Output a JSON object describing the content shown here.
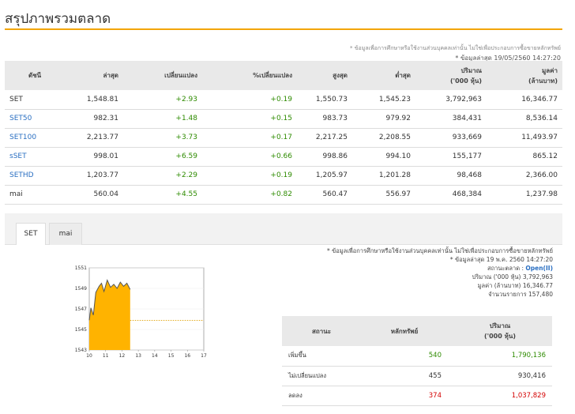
{
  "page": {
    "title": "สรุปภาพรวมตลาด",
    "disclaimer": "* ข้อมูลเพื่อการศึกษาหรือใช้งานส่วนบุคคลเท่านั้น ไม่ใช่เพื่อประกอบการซื้อขายหลักทรัพย์",
    "asof": "* ข้อมูลล่าสุด 19/05/2560 14:27:20"
  },
  "summary": {
    "headers": [
      "ดัชนี",
      "ล่าสุด",
      "เปลี่ยนแปลง",
      "%เปลี่ยนแปลง",
      "สูงสุด",
      "ต่ำสุด",
      "ปริมาณ\n('000 หุ้น)",
      "มูลค่า\n(ล้านบาท)"
    ],
    "rows": [
      {
        "name": "SET",
        "last": "1,548.81",
        "change": "+2.93",
        "pct": "+0.19",
        "high": "1,550.73",
        "low": "1,545.23",
        "volume": "3,792,963",
        "value": "16,346.77"
      },
      {
        "name": "SET50",
        "last": "982.31",
        "change": "+1.48",
        "pct": "+0.15",
        "high": "983.73",
        "low": "979.92",
        "volume": "384,431",
        "value": "8,536.14"
      },
      {
        "name": "SET100",
        "last": "2,213.77",
        "change": "+3.73",
        "pct": "+0.17",
        "high": "2,217.25",
        "low": "2,208.55",
        "volume": "933,669",
        "value": "11,493.97"
      },
      {
        "name": "sSET",
        "last": "998.01",
        "change": "+6.59",
        "pct": "+0.66",
        "high": "998.86",
        "low": "994.10",
        "volume": "155,177",
        "value": "865.12"
      },
      {
        "name": "SETHD",
        "last": "1,203.77",
        "change": "+2.29",
        "pct": "+0.19",
        "high": "1,205.97",
        "low": "1,201.28",
        "volume": "98,468",
        "value": "2,366.00"
      },
      {
        "name": "mai",
        "last": "560.04",
        "change": "+4.55",
        "pct": "+0.82",
        "high": "560.47",
        "low": "556.97",
        "volume": "468,384",
        "value": "1,237.98"
      }
    ]
  },
  "tabs": [
    {
      "label": "SET",
      "active": true
    },
    {
      "label": "mai",
      "active": false
    }
  ],
  "chart_data": {
    "type": "area",
    "x_ticks": [
      "10",
      "11",
      "12",
      "13",
      "14",
      "15",
      "16",
      "17"
    ],
    "y_ticks": [
      "1551",
      "1549",
      "1547",
      "1545",
      "1543"
    ],
    "ylim": [
      1543,
      1551
    ],
    "xlim": [
      10,
      17
    ],
    "reference_value": 1545.88,
    "series": [
      {
        "x": [
          10.0,
          10.1,
          10.25,
          10.4,
          10.6,
          10.75,
          10.9,
          11.1,
          11.3,
          11.5,
          11.7,
          11.9,
          12.1,
          12.3,
          12.5
        ],
        "y": [
          1545.9,
          1547.1,
          1546.4,
          1548.6,
          1549.2,
          1549.5,
          1548.7,
          1549.8,
          1549.1,
          1549.4,
          1549.0,
          1549.6,
          1549.2,
          1549.5,
          1548.9
        ]
      }
    ],
    "fill_color": "#ffb300",
    "line_color": "#555555",
    "reference_color": "#e0a000"
  },
  "market_info": {
    "disclaimer": "* ข้อมูลเพื่อการศึกษาหรือใช้งานส่วนบุคคลเท่านั้น ไม่ใช่เพื่อประกอบการซื้อขายหลักทรัพย์",
    "asof": "* ข้อมูลล่าสุด 19 พ.ค. 2560 14:27:20",
    "status_label": "สถานะตลาด :",
    "status_value": "Open(II)",
    "volume_line": "ปริมาณ ('000 หุ้น) 3,792,963",
    "value_line": "มูลค่า (ล้านบาท) 16,346.77",
    "trades_line": "จำนวนรายการ 157,480"
  },
  "status_table": {
    "headers": [
      "สถานะ",
      "หลักทรัพย์",
      "ปริมาณ\n('000 หุ้น)"
    ],
    "rows": [
      {
        "label": "เพิ่มขึ้น",
        "count": "540",
        "volume": "1,790,136",
        "color": "#2e8b00"
      },
      {
        "label": "ไม่เปลี่ยนแปลง",
        "count": "455",
        "volume": "930,416",
        "color": "#333333"
      },
      {
        "label": "ลดลง",
        "count": "374",
        "volume": "1,037,829",
        "color": "#d40000"
      }
    ]
  }
}
